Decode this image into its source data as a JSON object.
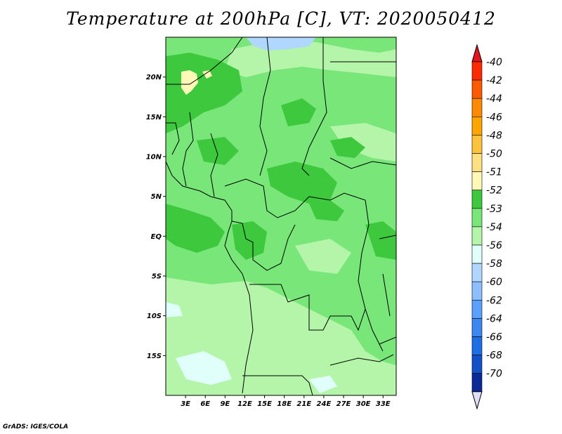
{
  "title": "Temperature at 200hPa [C], VT: 2020050412",
  "credit": "GrADS: IGES/COLA",
  "map": {
    "lat_range": [
      -20,
      25
    ],
    "lon_range": [
      0,
      35
    ],
    "lat_ticks": [
      {
        "value": 20,
        "label": "20N"
      },
      {
        "value": 15,
        "label": "15N"
      },
      {
        "value": 10,
        "label": "10N"
      },
      {
        "value": 5,
        "label": "5N"
      },
      {
        "value": 0,
        "label": "EQ"
      },
      {
        "value": -5,
        "label": "5S"
      },
      {
        "value": -10,
        "label": "10S"
      },
      {
        "value": -15,
        "label": "15S"
      }
    ],
    "lon_ticks": [
      {
        "value": 3,
        "label": "3E"
      },
      {
        "value": 6,
        "label": "6E"
      },
      {
        "value": 9,
        "label": "9E"
      },
      {
        "value": 12,
        "label": "12E"
      },
      {
        "value": 15,
        "label": "15E"
      },
      {
        "value": 18,
        "label": "18E"
      },
      {
        "value": 21,
        "label": "21E"
      },
      {
        "value": 24,
        "label": "24E"
      },
      {
        "value": 27,
        "label": "27E"
      },
      {
        "value": 30,
        "label": "30E"
      },
      {
        "value": 33,
        "label": "33E"
      }
    ]
  },
  "colorbar": {
    "levels": [
      {
        "label": "-40",
        "color": "#ff2a00"
      },
      {
        "label": "-42",
        "color": "#ff5a00"
      },
      {
        "label": "-44",
        "color": "#ff8a00"
      },
      {
        "label": "-46",
        "color": "#ffa500"
      },
      {
        "label": "-48",
        "color": "#ffc23c"
      },
      {
        "label": "-50",
        "color": "#ffe080"
      },
      {
        "label": "-51",
        "color": "#fff9b8"
      },
      {
        "label": "-52",
        "color": "#3ec83e"
      },
      {
        "label": "-53",
        "color": "#78e678"
      },
      {
        "label": "-54",
        "color": "#b4f5aa"
      },
      {
        "label": "-56",
        "color": "#e1fffa"
      },
      {
        "label": "-58",
        "color": "#afd7ff"
      },
      {
        "label": "-60",
        "color": "#8cbfff"
      },
      {
        "label": "-62",
        "color": "#5aa0ff"
      },
      {
        "label": "-64",
        "color": "#3c87f0"
      },
      {
        "label": "-66",
        "color": "#1e6ee6"
      },
      {
        "label": "-68",
        "color": "#1450c8"
      },
      {
        "label": "-70",
        "color": "#0a2896"
      }
    ],
    "top_color": "#e6141e",
    "bottom_color": "#e1e1f5"
  }
}
